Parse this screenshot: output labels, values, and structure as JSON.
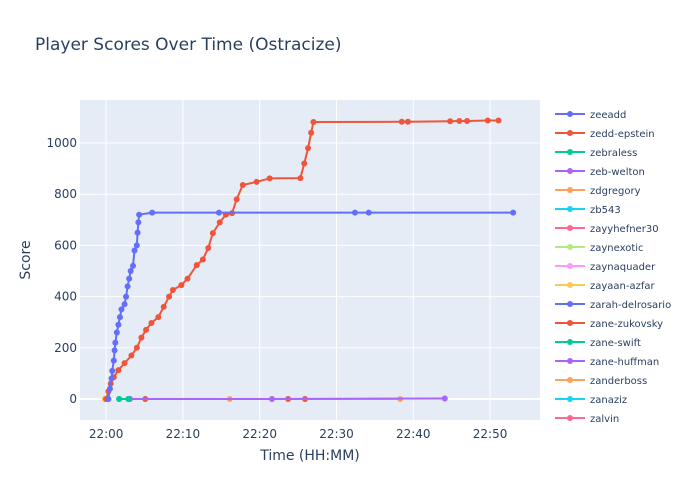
{
  "chart_data": {
    "type": "line",
    "title": "Player Scores Over Time (Ostracize)",
    "xlabel": "Time (HH:MM)",
    "ylabel": "Score",
    "x_units": "minutes after 22:00",
    "xlim": [
      -3.4,
      56.5
    ],
    "ylim": [
      -82,
      1168
    ],
    "x_ticks": [
      {
        "v": 0,
        "label": "22:00"
      },
      {
        "v": 10,
        "label": "22:10"
      },
      {
        "v": 20,
        "label": "22:20"
      },
      {
        "v": 30,
        "label": "22:30"
      },
      {
        "v": 40,
        "label": "22:40"
      },
      {
        "v": 50,
        "label": "22:50"
      }
    ],
    "y_ticks": [
      {
        "v": 0,
        "label": "0"
      },
      {
        "v": 200,
        "label": "200"
      },
      {
        "v": 400,
        "label": "400"
      },
      {
        "v": 600,
        "label": "600"
      },
      {
        "v": 800,
        "label": "800"
      },
      {
        "v": 1000,
        "label": "1000"
      }
    ],
    "grid": true,
    "legend_placement": "right",
    "series": [
      {
        "name": "zeeadd",
        "color": "#636efa",
        "points": [
          [
            0.3,
            0
          ],
          [
            0.5,
            40
          ],
          [
            0.7,
            80
          ],
          [
            0.8,
            110
          ],
          [
            1.0,
            150
          ],
          [
            1.1,
            190
          ],
          [
            1.2,
            220
          ],
          [
            1.4,
            260
          ],
          [
            1.6,
            290
          ],
          [
            1.8,
            320
          ],
          [
            2.0,
            350
          ],
          [
            2.4,
            370
          ],
          [
            2.6,
            400
          ],
          [
            2.8,
            440
          ],
          [
            3.0,
            470
          ],
          [
            3.2,
            500
          ],
          [
            3.5,
            520
          ],
          [
            3.7,
            580
          ],
          [
            4.0,
            600
          ],
          [
            4.1,
            650
          ],
          [
            4.2,
            690
          ],
          [
            4.3,
            720
          ],
          [
            6.0,
            728
          ],
          [
            14.7,
            728
          ],
          [
            32.4,
            728
          ],
          [
            34.2,
            728
          ],
          [
            53.0,
            728
          ]
        ]
      },
      {
        "name": "zedd-epstein",
        "color": "#ef553b",
        "points": [
          [
            0,
            0
          ],
          [
            0.3,
            30
          ],
          [
            0.6,
            60
          ],
          [
            1.0,
            85
          ],
          [
            1.6,
            113
          ],
          [
            2.4,
            140
          ],
          [
            3.3,
            170
          ],
          [
            4.0,
            200
          ],
          [
            4.6,
            240
          ],
          [
            5.2,
            270
          ],
          [
            5.9,
            297
          ],
          [
            6.8,
            320
          ],
          [
            7.5,
            360
          ],
          [
            8.2,
            400
          ],
          [
            8.7,
            426
          ],
          [
            9.8,
            445
          ],
          [
            10.6,
            470
          ],
          [
            11.8,
            523
          ],
          [
            12.6,
            545
          ],
          [
            13.3,
            590
          ],
          [
            13.9,
            648
          ],
          [
            14.8,
            690
          ],
          [
            15.6,
            720
          ],
          [
            16.4,
            726
          ],
          [
            17.0,
            780
          ],
          [
            17.8,
            836
          ],
          [
            19.6,
            848
          ],
          [
            21.3,
            862
          ],
          [
            25.3,
            863
          ],
          [
            25.8,
            920
          ],
          [
            26.3,
            980
          ],
          [
            26.7,
            1040
          ],
          [
            27.0,
            1082
          ],
          [
            38.5,
            1083
          ],
          [
            39.3,
            1083
          ],
          [
            44.8,
            1085
          ],
          [
            46.0,
            1086
          ],
          [
            47.0,
            1086
          ],
          [
            49.7,
            1088
          ],
          [
            51.1,
            1088
          ]
        ]
      },
      {
        "name": "zebraless",
        "color": "#00cc96",
        "points": [
          [
            1.7,
            0
          ],
          [
            2.9,
            0
          ]
        ]
      },
      {
        "name": "zeb-welton",
        "color": "#ab63fa",
        "points": [
          [
            3.1,
            0
          ],
          [
            21.6,
            0
          ],
          [
            44.1,
            2
          ]
        ]
      },
      {
        "name": "zdgregory",
        "color": "#ffa15a",
        "points": [
          [
            16.1,
            0
          ],
          [
            38.3,
            0
          ]
        ]
      },
      {
        "name": "zb543",
        "color": "#19d3f3",
        "points": [
          [
            2.9,
            0
          ]
        ]
      },
      {
        "name": "zayyhefner30",
        "color": "#ff6692",
        "points": [
          [
            0,
            0
          ]
        ]
      },
      {
        "name": "zaynexotic",
        "color": "#b6e880",
        "points": [
          [
            0,
            0
          ]
        ]
      },
      {
        "name": "zaynaquader",
        "color": "#ff97ff",
        "points": [
          [
            0,
            0
          ]
        ]
      },
      {
        "name": "zayaan-azfar",
        "color": "#fecb52",
        "points": [
          [
            -0.2,
            0
          ]
        ]
      },
      {
        "name": "zarah-delrosario",
        "color": "#636efa",
        "points": [
          [
            0,
            0
          ]
        ]
      },
      {
        "name": "zane-zukovsky",
        "color": "#ef553b",
        "points": [
          [
            5.1,
            0
          ],
          [
            23.7,
            0
          ],
          [
            25.9,
            0
          ]
        ]
      },
      {
        "name": "zane-swift",
        "color": "#00cc96",
        "points": [
          [
            1.7,
            0
          ]
        ]
      },
      {
        "name": "zane-huffman",
        "color": "#ab63fa",
        "points": [
          [
            3.1,
            0
          ]
        ]
      },
      {
        "name": "zanderboss",
        "color": "#ffa15a",
        "points": [
          [
            0,
            0
          ]
        ]
      },
      {
        "name": "zanaziz",
        "color": "#19d3f3",
        "points": [
          [
            0,
            0
          ]
        ]
      },
      {
        "name": "zalvin",
        "color": "#ff6692",
        "points": [
          [
            0,
            0
          ]
        ]
      }
    ]
  }
}
